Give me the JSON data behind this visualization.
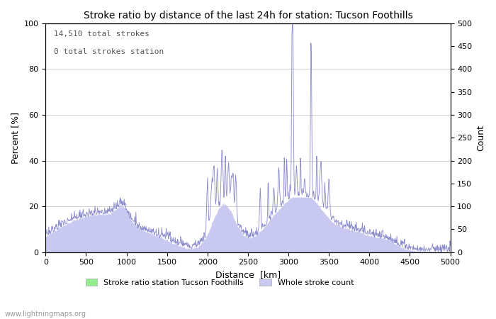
{
  "title": "Stroke ratio by distance of the last 24h for station: Tucson Foothills",
  "xlabel": "Distance  [km]",
  "ylabel_left": "Percent [%]",
  "ylabel_right": "Count",
  "annotation_line1": "14,510 total strokes",
  "annotation_line2": "0 total strokes station",
  "xlim": [
    0,
    5000
  ],
  "ylim_left": [
    0,
    100
  ],
  "ylim_right": [
    0,
    500
  ],
  "xticks": [
    0,
    500,
    1000,
    1500,
    2000,
    2500,
    3000,
    3500,
    4000,
    4500,
    5000
  ],
  "yticks_left": [
    0,
    20,
    40,
    60,
    80,
    100
  ],
  "yticks_right": [
    0,
    50,
    100,
    150,
    200,
    250,
    300,
    350,
    400,
    450,
    500
  ],
  "legend_label_green": "Stroke ratio station Tucson Foothills",
  "legend_label_blue": "Whole stroke count",
  "watermark": "www.lightningmaps.org",
  "fill_green_color": "#90ee90",
  "fill_blue_color": "#c8c8f0",
  "line_blue_color": "#8888cc",
  "line_green_color": "#44aa44",
  "background_color": "#ffffff",
  "grid_color": "#bbbbbb"
}
